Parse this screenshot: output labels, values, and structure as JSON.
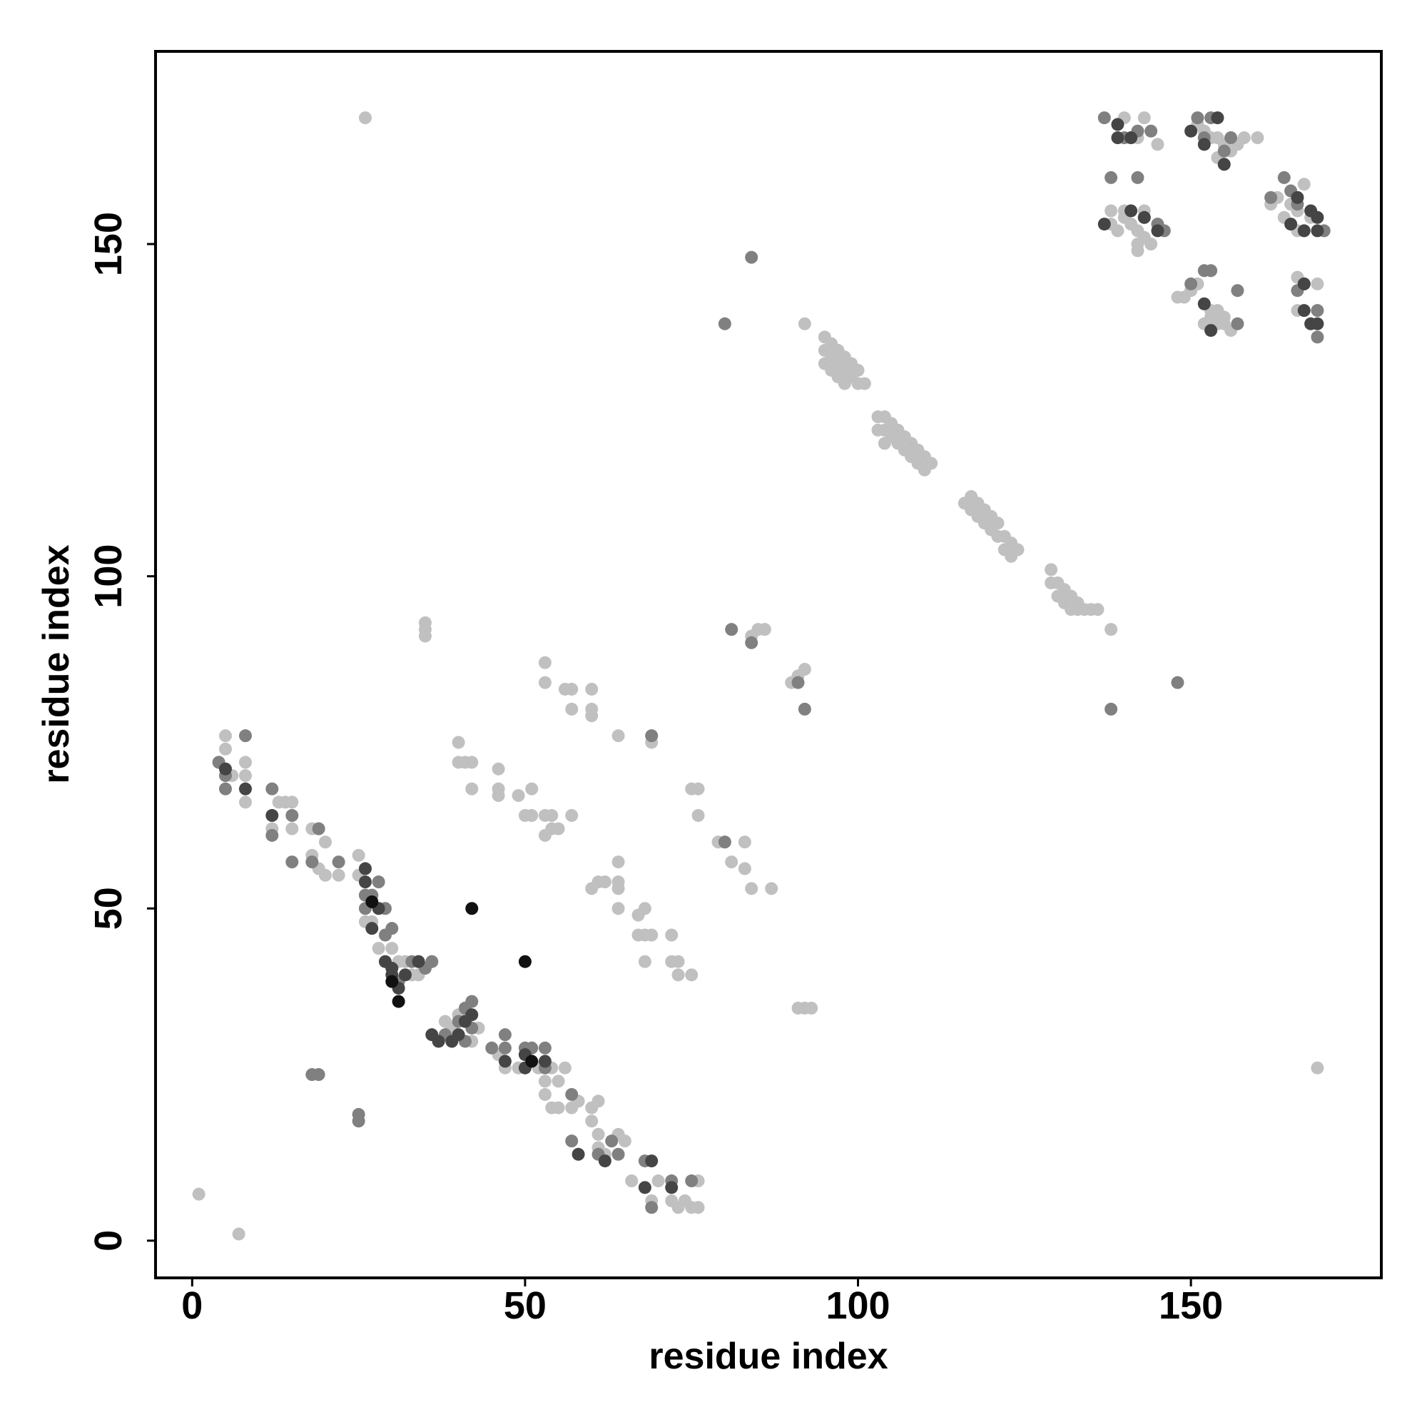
{
  "chart_data": {
    "type": "scatter",
    "xlabel": "residue index",
    "ylabel": "residue index",
    "xlim": [
      -5.5,
      178.6
    ],
    "ylim": [
      -5.6,
      179
    ],
    "xticks": [
      0,
      50,
      100,
      150
    ],
    "yticks": [
      0,
      50,
      100,
      150
    ],
    "grid": false,
    "series": [
      {
        "color": "#c0c0c0",
        "x": [
          1,
          7,
          26,
          169,
          35,
          35,
          35,
          5,
          5,
          4,
          6,
          8,
          8,
          8,
          12,
          13,
          14,
          15,
          15,
          18,
          19,
          20,
          18,
          19,
          20,
          22,
          25,
          25,
          26,
          26,
          27,
          28,
          30,
          31,
          32,
          33,
          34,
          34,
          36,
          38,
          38,
          39,
          40,
          41,
          42,
          43,
          46,
          47,
          49,
          50,
          52,
          53,
          54,
          55,
          56,
          53,
          54,
          55,
          57,
          58,
          60,
          61,
          60,
          61,
          61,
          62,
          64,
          65,
          66,
          69,
          70,
          72,
          73,
          74,
          75,
          76,
          76,
          53,
          53,
          56,
          57,
          57,
          60,
          60,
          60,
          64,
          69,
          69,
          40,
          40,
          41,
          42,
          42,
          46,
          46,
          46,
          49,
          50,
          51,
          51,
          53,
          54,
          53,
          54,
          55,
          57,
          60,
          61,
          62,
          64,
          64,
          64,
          64,
          67,
          68,
          67,
          68,
          69,
          68,
          72,
          72,
          73,
          73,
          75,
          75,
          76,
          76,
          79,
          80,
          81,
          83,
          83,
          84,
          87,
          84,
          85,
          86,
          90,
          91,
          92,
          91,
          92,
          93,
          92,
          95,
          95,
          95,
          96,
          96,
          96,
          97,
          97,
          97,
          98,
          98,
          98,
          99,
          99,
          100,
          100,
          101,
          103,
          103,
          104,
          104,
          104,
          105,
          105,
          106,
          106,
          107,
          107,
          108,
          108,
          109,
          109,
          110,
          110,
          111,
          116,
          117,
          117,
          118,
          118,
          119,
          119,
          120,
          120,
          121,
          121,
          122,
          122,
          123,
          123,
          124,
          129,
          129,
          130,
          130,
          131,
          131,
          132,
          132,
          133,
          133,
          134,
          135,
          136,
          138,
          140,
          143,
          142,
          145,
          151,
          152,
          153,
          154,
          155,
          156,
          156,
          157,
          158,
          160,
          154,
          155,
          162,
          163,
          164,
          165,
          165,
          166,
          166,
          167,
          166,
          168,
          166,
          169,
          166,
          148,
          149,
          150,
          151,
          152,
          153,
          153,
          154,
          154,
          155,
          155,
          156,
          152,
          138,
          138,
          139,
          140,
          140,
          141,
          142,
          142,
          142,
          143,
          143,
          144
        ],
        "values": [
          7,
          1,
          169,
          26,
          92,
          93,
          91,
          76,
          74,
          72,
          70,
          72,
          70,
          66,
          62,
          66,
          66,
          66,
          62,
          62,
          62,
          60,
          58,
          56,
          55,
          55,
          58,
          55,
          52,
          48,
          48,
          44,
          44,
          42,
          42,
          40,
          40,
          42,
          42,
          33,
          31,
          32,
          34,
          35,
          30,
          32,
          28,
          26,
          26,
          28,
          26,
          24,
          26,
          24,
          26,
          22,
          20,
          20,
          20,
          21,
          20,
          21,
          18,
          16,
          14,
          13,
          16,
          15,
          9,
          6,
          9,
          6,
          5,
          6,
          5,
          9,
          5,
          87,
          84,
          83,
          83,
          80,
          83,
          80,
          79,
          76,
          76,
          75,
          75,
          72,
          72,
          72,
          68,
          71,
          68,
          67,
          67,
          64,
          68,
          64,
          64,
          64,
          61,
          62,
          62,
          64,
          53,
          54,
          54,
          57,
          54,
          53,
          50,
          49,
          50,
          46,
          46,
          46,
          42,
          46,
          42,
          42,
          40,
          40,
          68,
          68,
          64,
          60,
          60,
          57,
          60,
          56,
          53,
          53,
          91,
          92,
          92,
          84,
          85,
          86,
          35,
          35,
          35,
          138,
          136,
          134,
          132,
          135,
          133,
          131,
          134,
          132,
          130,
          133,
          131,
          129,
          132,
          130,
          131,
          129,
          129,
          124,
          122,
          124,
          122,
          120,
          123,
          121,
          122,
          120,
          121,
          119,
          120,
          118,
          119,
          117,
          118,
          116,
          117,
          111,
          110,
          112,
          111,
          109,
          110,
          108,
          109,
          107,
          108,
          106,
          106,
          104,
          105,
          103,
          104,
          101,
          99,
          99,
          97,
          98,
          96,
          97,
          95,
          96,
          95,
          95,
          95,
          95,
          92,
          169,
          169,
          166,
          165,
          168,
          167,
          166,
          166,
          165,
          166,
          164,
          165,
          166,
          166,
          163,
          162,
          156,
          157,
          154,
          156,
          153,
          155,
          152,
          159,
          157,
          154,
          145,
          144,
          140,
          142,
          142,
          143,
          144,
          141,
          140,
          139,
          138,
          140,
          139,
          138,
          137,
          138,
          155,
          153,
          152,
          154,
          155,
          153,
          152,
          150,
          149,
          151,
          155,
          150
        ]
      },
      {
        "color": "#808080",
        "x": [
          4,
          5,
          8,
          5,
          12,
          15,
          15,
          12,
          18,
          19,
          22,
          18,
          19,
          25,
          25,
          26,
          28,
          27,
          29,
          30,
          26,
          29,
          31,
          33,
          35,
          36,
          38,
          40,
          41,
          42,
          42,
          41,
          45,
          47,
          47,
          50,
          51,
          53,
          53,
          57,
          57,
          61,
          63,
          64,
          68,
          69,
          69,
          75,
          72,
          80,
          80,
          81,
          84,
          84,
          92,
          91,
          138,
          138,
          148,
          142,
          137,
          140,
          142,
          144,
          143,
          145,
          146,
          151,
          152,
          153,
          155,
          156,
          152,
          153,
          150,
          157,
          157,
          164,
          165,
          166,
          167,
          166,
          169,
          169,
          162,
          170
        ],
        "values": [
          72,
          70,
          76,
          68,
          68,
          64,
          57,
          61,
          57,
          62,
          57,
          25,
          25,
          19,
          18,
          52,
          54,
          52,
          46,
          47,
          50,
          50,
          39,
          42,
          41,
          42,
          31,
          33,
          35,
          36,
          32,
          30,
          29,
          31,
          29,
          29,
          29,
          29,
          26,
          22,
          15,
          13,
          15,
          13,
          12,
          5,
          76,
          9,
          9,
          60,
          138,
          92,
          148,
          90,
          80,
          84,
          160,
          80,
          84,
          160,
          169,
          166,
          167,
          167,
          154,
          153,
          152,
          169,
          166,
          169,
          164,
          166,
          146,
          146,
          144,
          143,
          138,
          160,
          158,
          156,
          144,
          143,
          140,
          136,
          157,
          152
        ]
      },
      {
        "color": "#454545",
        "x": [
          5,
          8,
          12,
          26,
          26,
          28,
          27,
          30,
          31,
          32,
          34,
          30,
          29,
          36,
          37,
          39,
          40,
          41,
          42,
          47,
          50,
          50,
          53,
          58,
          62,
          68,
          69,
          72,
          137,
          139,
          139,
          141,
          152,
          153,
          150,
          152,
          154,
          155,
          141,
          143,
          166,
          167,
          168,
          169,
          169,
          168,
          167,
          167,
          169,
          165,
          145
        ],
        "values": [
          71,
          68,
          64,
          56,
          54,
          50,
          47,
          41,
          38,
          40,
          42,
          40,
          42,
          31,
          30,
          30,
          31,
          33,
          34,
          27,
          26,
          28,
          27,
          13,
          12,
          8,
          12,
          8,
          153,
          168,
          166,
          166,
          141,
          137,
          167,
          165,
          169,
          162,
          155,
          154,
          157,
          152,
          155,
          154,
          152,
          138,
          140,
          144,
          138,
          153,
          152
        ]
      },
      {
        "color": "#111111",
        "x": [
          42,
          50,
          27,
          51,
          31,
          30
        ],
        "values": [
          50,
          42,
          51,
          27,
          36,
          39
        ]
      }
    ]
  }
}
